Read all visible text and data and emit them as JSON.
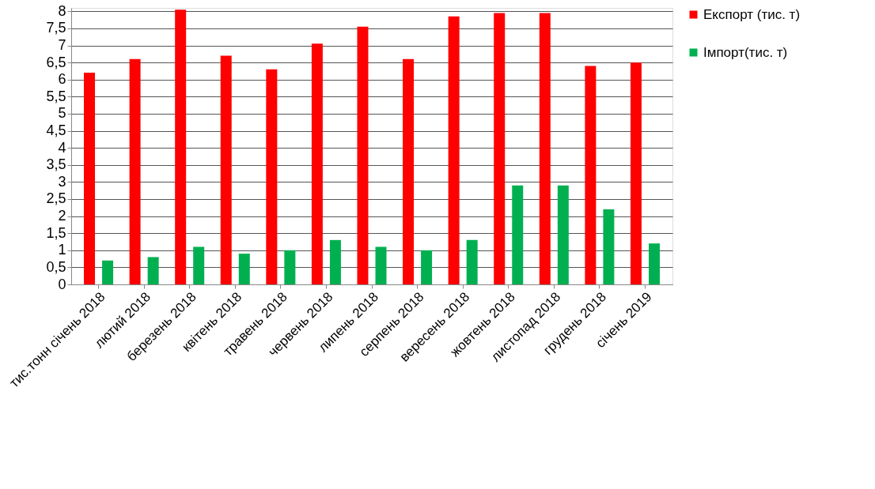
{
  "chart_data": {
    "type": "bar",
    "categories": [
      "тис.тонн  січень 2018",
      "лютий 2018",
      "березень 2018",
      "квітень 2018",
      "травень 2018",
      "червень 2018",
      "липень 2018",
      "серпень 2018",
      "вересень 2018",
      "жовтень 2018",
      "листопад 2018",
      "грудень 2018",
      "січень 2019"
    ],
    "series": [
      {
        "name": "Експорт (тис. т)",
        "color": "#ff0000",
        "values": [
          6.2,
          6.6,
          8.05,
          6.7,
          6.3,
          7.05,
          7.55,
          6.6,
          7.85,
          7.95,
          7.95,
          6.4,
          6.5
        ]
      },
      {
        "name": "Імпорт(тис. т)",
        "color": "#00b050",
        "values": [
          0.7,
          0.8,
          1.1,
          0.9,
          1.0,
          1.3,
          1.1,
          1.0,
          1.3,
          2.9,
          2.9,
          2.2,
          1.2
        ]
      }
    ],
    "ylim": [
      0,
      8.1
    ],
    "yticks": [
      0,
      {
        "value": 0.5,
        "label": "0,5"
      },
      1,
      {
        "value": 1.5,
        "label": "1,5"
      },
      2,
      {
        "value": 2.5,
        "label": "2,5"
      },
      3,
      {
        "value": 3.5,
        "label": "3,5"
      },
      4,
      {
        "value": 4.5,
        "label": "4,5"
      },
      5,
      {
        "value": 5.5,
        "label": "5,5"
      },
      6,
      {
        "value": 6.5,
        "label": "6,5"
      },
      7,
      {
        "value": 7.5,
        "label": "7,5"
      },
      8
    ],
    "grid": "y",
    "legend": "right"
  }
}
